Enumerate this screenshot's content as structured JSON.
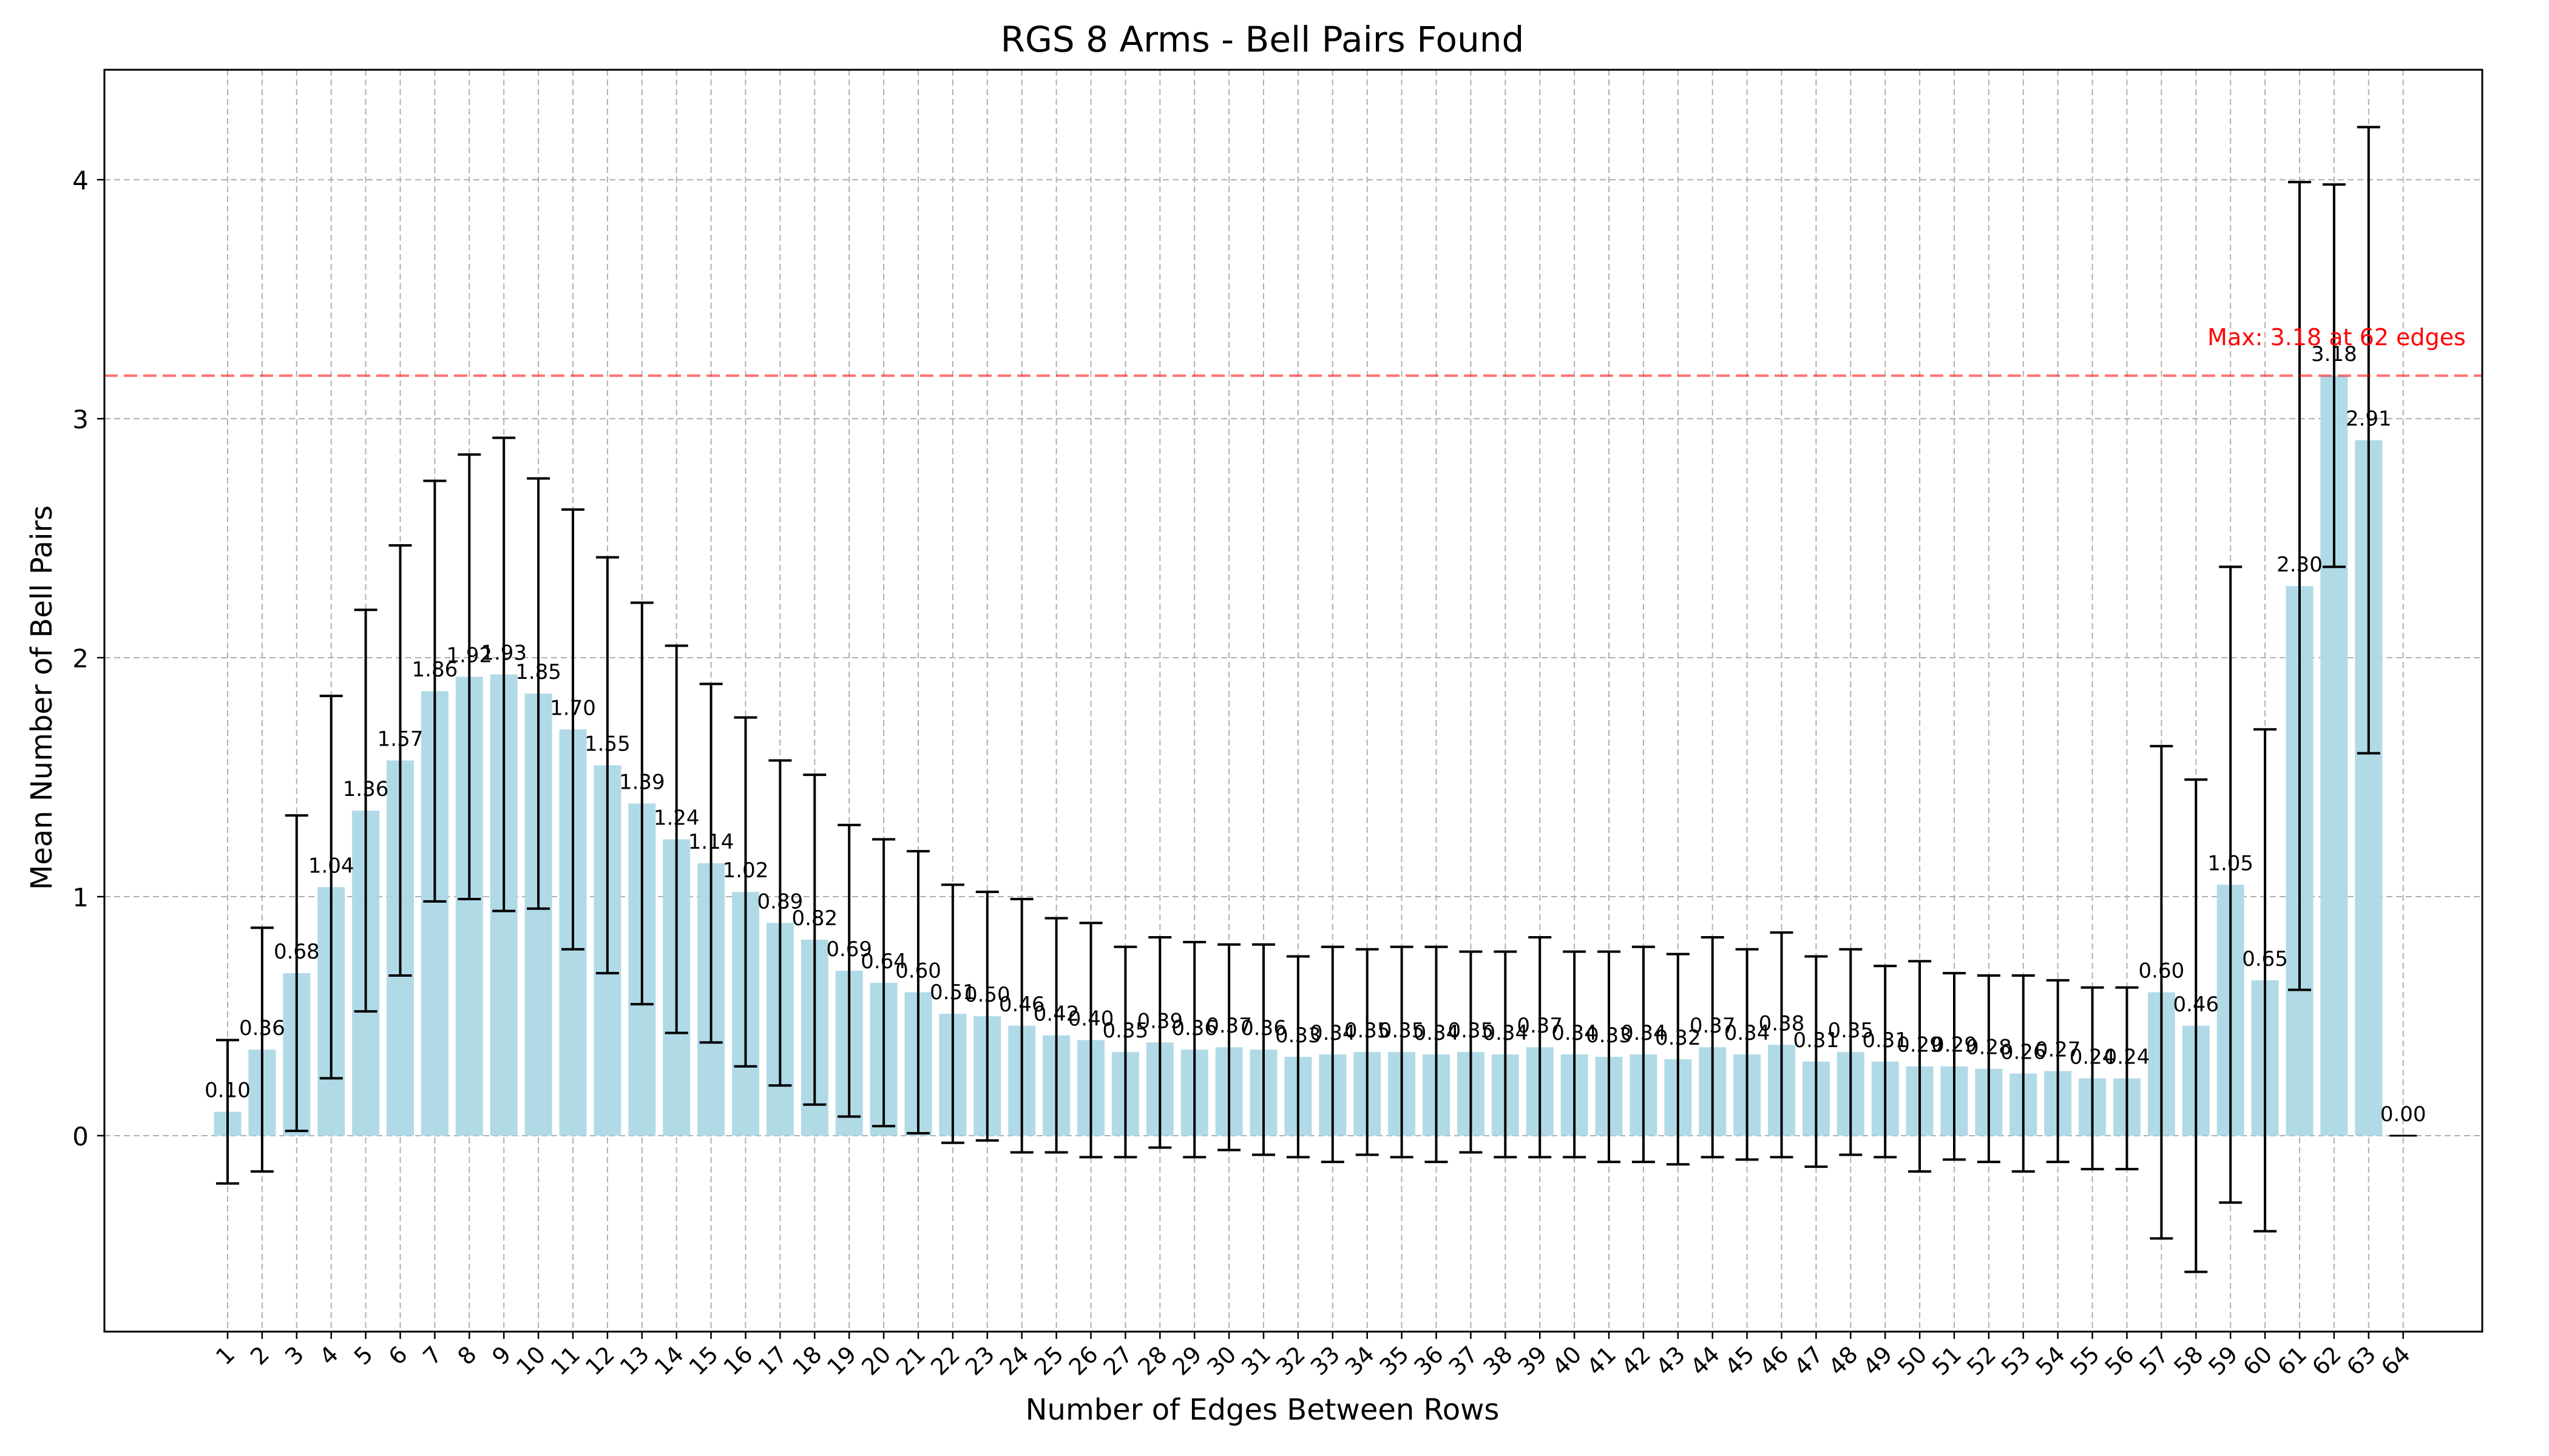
{
  "chart_data": {
    "type": "bar",
    "title": "RGS 8 Arms - Bell Pairs Found",
    "xlabel": "Number of Edges Between Rows",
    "ylabel": "Mean Number of Bell Pairs",
    "ylim": [
      -0.82,
      4.46
    ],
    "yticks": [
      0,
      1,
      2,
      3,
      4
    ],
    "grid": true,
    "categories": [
      "1",
      "2",
      "3",
      "4",
      "5",
      "6",
      "7",
      "8",
      "9",
      "10",
      "11",
      "12",
      "13",
      "14",
      "15",
      "16",
      "17",
      "18",
      "19",
      "20",
      "21",
      "22",
      "23",
      "24",
      "25",
      "26",
      "27",
      "28",
      "29",
      "30",
      "31",
      "32",
      "33",
      "34",
      "35",
      "36",
      "37",
      "38",
      "39",
      "40",
      "41",
      "42",
      "43",
      "44",
      "45",
      "46",
      "47",
      "48",
      "49",
      "50",
      "51",
      "52",
      "53",
      "54",
      "55",
      "56",
      "57",
      "58",
      "59",
      "60",
      "61",
      "62",
      "63",
      "64"
    ],
    "values": [
      0.1,
      0.36,
      0.68,
      1.04,
      1.36,
      1.57,
      1.86,
      1.92,
      1.93,
      1.85,
      1.7,
      1.55,
      1.39,
      1.24,
      1.14,
      1.02,
      0.89,
      0.82,
      0.69,
      0.64,
      0.6,
      0.51,
      0.5,
      0.46,
      0.42,
      0.4,
      0.35,
      0.39,
      0.36,
      0.37,
      0.36,
      0.33,
      0.34,
      0.35,
      0.35,
      0.34,
      0.35,
      0.34,
      0.37,
      0.34,
      0.33,
      0.34,
      0.32,
      0.37,
      0.34,
      0.38,
      0.31,
      0.35,
      0.31,
      0.29,
      0.29,
      0.28,
      0.26,
      0.27,
      0.24,
      0.24,
      0.6,
      0.46,
      1.05,
      0.65,
      2.3,
      3.18,
      2.91,
      0.0
    ],
    "value_labels": [
      "0.10",
      "0.36",
      "0.68",
      "1.04",
      "1.36",
      "1.57",
      "1.86",
      "1.92",
      "1.93",
      "1.85",
      "1.70",
      "1.55",
      "1.39",
      "1.24",
      "1.14",
      "1.02",
      "0.89",
      "0.82",
      "0.69",
      "0.64",
      "0.60",
      "0.51",
      "0.50",
      "0.46",
      "0.42",
      "0.40",
      "0.35",
      "0.39",
      "0.36",
      "0.37",
      "0.36",
      "0.33",
      "0.34",
      "0.35",
      "0.35",
      "0.34",
      "0.35",
      "0.34",
      "0.37",
      "0.34",
      "0.33",
      "0.34",
      "0.32",
      "0.37",
      "0.34",
      "0.38",
      "0.31",
      "0.35",
      "0.31",
      "0.29",
      "0.29",
      "0.28",
      "0.26",
      "0.27",
      "0.24",
      "0.24",
      "0.60",
      "0.46",
      "1.05",
      "0.65",
      "2.30",
      "3.18",
      "2.91",
      "0.00"
    ],
    "errors": [
      0.3,
      0.51,
      0.66,
      0.8,
      0.84,
      0.9,
      0.88,
      0.93,
      0.99,
      0.9,
      0.92,
      0.87,
      0.84,
      0.81,
      0.75,
      0.73,
      0.68,
      0.69,
      0.61,
      0.6,
      0.59,
      0.54,
      0.52,
      0.53,
      0.49,
      0.49,
      0.44,
      0.44,
      0.45,
      0.43,
      0.44,
      0.42,
      0.45,
      0.43,
      0.44,
      0.45,
      0.42,
      0.43,
      0.46,
      0.43,
      0.44,
      0.45,
      0.44,
      0.46,
      0.44,
      0.47,
      0.44,
      0.43,
      0.4,
      0.44,
      0.39,
      0.39,
      0.41,
      0.38,
      0.38,
      0.38,
      1.03,
      1.03,
      1.33,
      1.05,
      1.69,
      0.8,
      1.31,
      0.0
    ],
    "bar_color": "#add8e6",
    "error_color": "#000000",
    "reference_line": {
      "value": 3.18,
      "label": "Max: 3.18 at 62 edges",
      "color": "#ff0000"
    },
    "legend": "none"
  }
}
